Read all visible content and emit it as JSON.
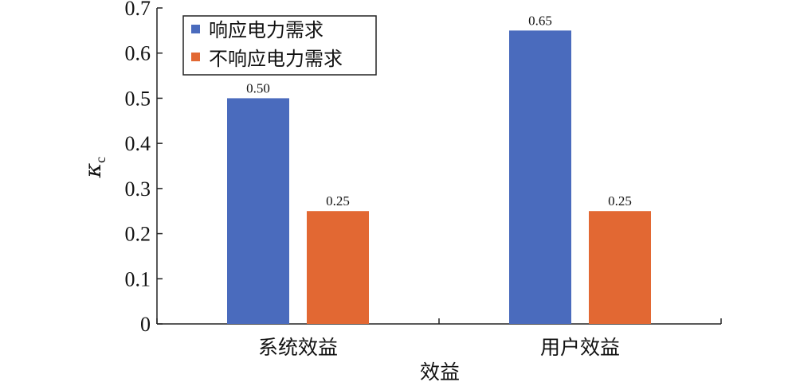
{
  "chart_data": {
    "type": "bar",
    "categories": [
      "系统效益",
      "用户效益"
    ],
    "series": [
      {
        "name": "响应电力需求",
        "values": [
          0.5,
          0.65
        ],
        "labels": [
          "0.50",
          "0.65"
        ],
        "color": "#4a6bbd"
      },
      {
        "name": "不响应电力需求",
        "values": [
          0.25,
          0.25
        ],
        "labels": [
          "0.25",
          "0.25"
        ],
        "color": "#e26833"
      }
    ],
    "xlabel": "效益",
    "ylabel_symbol": "κ",
    "ylabel_subscript": "c",
    "ylim": [
      0,
      0.7
    ],
    "yticks": [
      "0",
      "0.1",
      "0.2",
      "0.3",
      "0.4",
      "0.5",
      "0.6",
      "0.7"
    ],
    "grid": false,
    "legend_position": "top-left"
  }
}
